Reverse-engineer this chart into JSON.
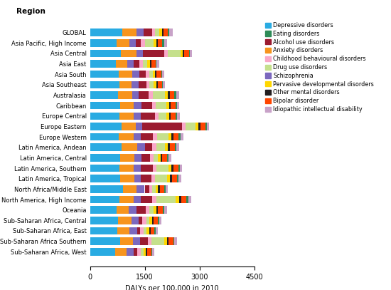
{
  "regions": [
    "GLOBAL",
    "Asia Pacific, High Income",
    "Asia Central",
    "Asia East",
    "Asia South",
    "Asia Southeast",
    "Australasia",
    "Caribbean",
    "Europe Central",
    "Europe Eastern",
    "Europe Western",
    "Latin America, Andean",
    "Latin America, Central",
    "Latin America, Southern",
    "Latin America, Tropical",
    "North Africa/Middle East",
    "North America, High Income",
    "Oceania",
    "Sub-Saharan Africa, Central",
    "Sub-Saharan Africa, East",
    "Sub-Saharan Africa Southern",
    "Sub-Saharan Africa, West"
  ],
  "disorders": [
    "Depressive disorders",
    "Anxiety disorders",
    "Schizophrenia",
    "Alcohol use disorders",
    "Childhood behavioural disorders",
    "Drug use disorders",
    "Pervasive developmental disorders",
    "Other mental disorders",
    "Bipolar disorder",
    "Eating disorders",
    "Idiopathic intellectual disability"
  ],
  "legend_labels": [
    "Depressive disorders",
    "Eating disorders",
    "Alcohol use disorders",
    "Anxiety disorders",
    "Childhood behavioural disorders",
    "Drug use disorders",
    "Schizophrenia",
    "Pervasive developmental disorders",
    "Other mental disorders",
    "Bipolar disorder",
    "Idiopathic intellectual disability"
  ],
  "colors": [
    "#29ABE2",
    "#F7941D",
    "#7B68BE",
    "#9B1B30",
    "#F9A8C9",
    "#C5E08C",
    "#FFD700",
    "#231F20",
    "#FF4500",
    "#2E8B57",
    "#C8A2C8"
  ],
  "legend_colors": [
    "#29ABE2",
    "#2E8B57",
    "#9B1B30",
    "#F7941D",
    "#F9A8C9",
    "#C5E08C",
    "#7B68BE",
    "#FFD700",
    "#231F20",
    "#FF4500",
    "#C8A2C8"
  ],
  "data": {
    "GLOBAL": [
      890,
      380,
      200,
      230,
      90,
      110,
      70,
      50,
      120,
      40,
      80
    ],
    "Asia Pacific, High Income": [
      730,
      350,
      170,
      150,
      100,
      250,
      80,
      40,
      110,
      50,
      90
    ],
    "Asia Central": [
      850,
      430,
      180,
      580,
      90,
      350,
      60,
      40,
      130,
      30,
      60
    ],
    "Asia East": [
      710,
      310,
      180,
      150,
      100,
      120,
      80,
      40,
      110,
      30,
      60
    ],
    "Asia South": [
      780,
      370,
      200,
      180,
      90,
      100,
      60,
      40,
      130,
      30,
      60
    ],
    "Asia Southeast": [
      800,
      340,
      200,
      200,
      80,
      130,
      70,
      40,
      110,
      30,
      60
    ],
    "Australasia": [
      760,
      390,
      180,
      280,
      120,
      320,
      90,
      50,
      120,
      60,
      70
    ],
    "Caribbean": [
      820,
      380,
      210,
      300,
      100,
      290,
      70,
      40,
      130,
      40,
      70
    ],
    "Europe Central": [
      800,
      400,
      200,
      380,
      100,
      220,
      70,
      40,
      140,
      40,
      70
    ],
    "Europe Eastern": [
      870,
      380,
      190,
      1080,
      100,
      280,
      80,
      40,
      140,
      40,
      70
    ],
    "Europe Western": [
      780,
      410,
      200,
      330,
      120,
      310,
      90,
      50,
      130,
      60,
      80
    ],
    "Latin America, Andean": [
      860,
      440,
      200,
      200,
      120,
      240,
      80,
      50,
      130,
      40,
      80
    ],
    "Latin America, Central": [
      820,
      400,
      190,
      230,
      100,
      130,
      70,
      40,
      140,
      30,
      80
    ],
    "Latin America, Southern": [
      810,
      390,
      200,
      330,
      100,
      320,
      80,
      50,
      140,
      40,
      70
    ],
    "Latin America, Tropical": [
      820,
      390,
      190,
      280,
      100,
      340,
      80,
      50,
      140,
      40,
      80
    ],
    "North Africa/Middle East": [
      900,
      380,
      220,
      120,
      80,
      100,
      70,
      40,
      130,
      30,
      60
    ],
    "North America, High Income": [
      810,
      390,
      190,
      310,
      130,
      520,
      100,
      50,
      140,
      60,
      80
    ],
    "Oceania": [
      730,
      340,
      200,
      250,
      100,
      130,
      70,
      50,
      130,
      40,
      70
    ],
    "Sub-Saharan Africa, Central": [
      770,
      370,
      200,
      100,
      110,
      80,
      70,
      40,
      120,
      30,
      60
    ],
    "Sub-Saharan Africa, East": [
      750,
      340,
      200,
      80,
      100,
      80,
      70,
      40,
      110,
      30,
      60
    ],
    "Sub-Saharan Africa Southern": [
      820,
      360,
      200,
      210,
      100,
      350,
      80,
      40,
      120,
      30,
      70
    ],
    "Sub-Saharan Africa, West": [
      700,
      310,
      190,
      100,
      100,
      70,
      60,
      40,
      110,
      30,
      60
    ]
  },
  "region_label": "Region",
  "xlabel": "DALYs per 100,000 in 2010",
  "xlim": [
    0,
    4500
  ],
  "xticks": [
    0,
    1500,
    3000,
    4500
  ]
}
